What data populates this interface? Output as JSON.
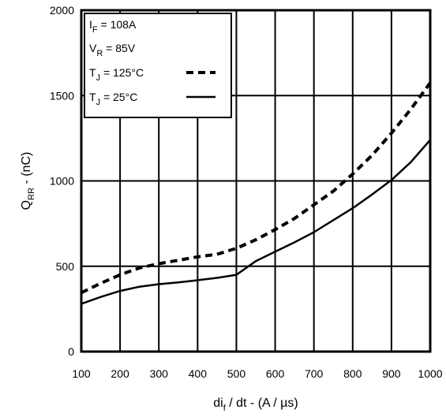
{
  "chart_data": {
    "type": "line",
    "xlabel_main": "di",
    "xlabel_sub": "f",
    "xlabel_rest": " / dt - (A / µs)",
    "ylabel_main": "Q",
    "ylabel_sub": "RR",
    "ylabel_rest": " - (nC)",
    "xlim": [
      100,
      1000
    ],
    "ylim": [
      0,
      2000
    ],
    "x_ticks": [
      "100",
      "200",
      "300",
      "400",
      "500",
      "600",
      "700",
      "800",
      "900",
      "1000"
    ],
    "y_ticks": [
      "0",
      "500",
      "1000",
      "1500",
      "2000"
    ],
    "grid": true,
    "legend_position": "top-left",
    "conditions": [
      {
        "main": "I",
        "sub": "F",
        "rest": " = 108A"
      },
      {
        "main": "V",
        "sub": "R",
        "rest": " = 85V"
      }
    ],
    "series": [
      {
        "name_main": "T",
        "name_sub": "J",
        "name_rest": " = 125°C",
        "style": "dashed",
        "x": [
          100,
          150,
          200,
          250,
          300,
          350,
          400,
          450,
          500,
          550,
          600,
          650,
          700,
          750,
          800,
          850,
          900,
          950,
          1000
        ],
        "y": [
          345,
          400,
          450,
          490,
          515,
          535,
          555,
          570,
          605,
          655,
          715,
          780,
          860,
          940,
          1040,
          1150,
          1280,
          1420,
          1575
        ]
      },
      {
        "name_main": "T",
        "name_sub": "J",
        "name_rest": " =  25°C",
        "style": "solid",
        "x": [
          100,
          150,
          200,
          250,
          300,
          350,
          400,
          450,
          500,
          550,
          600,
          650,
          700,
          750,
          800,
          850,
          900,
          950,
          1000
        ],
        "y": [
          280,
          320,
          355,
          380,
          395,
          405,
          418,
          432,
          450,
          530,
          585,
          640,
          700,
          770,
          840,
          920,
          1005,
          1110,
          1240
        ]
      }
    ]
  }
}
